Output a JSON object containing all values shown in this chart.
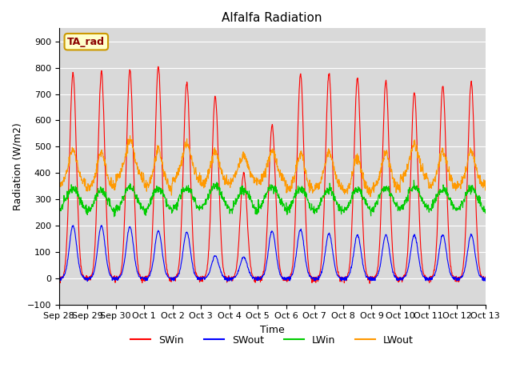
{
  "title": "Alfalfa Radiation",
  "xlabel": "Time",
  "ylabel": "Radiation (W/m2)",
  "ylim": [
    -100,
    950
  ],
  "yticks": [
    -100,
    0,
    100,
    200,
    300,
    400,
    500,
    600,
    700,
    800,
    900
  ],
  "x_tick_labels": [
    "Sep 28",
    "Sep 29",
    "Sep 30",
    "Oct 1",
    "Oct 2",
    "Oct 3",
    "Oct 4",
    "Oct 5",
    "Oct 6",
    "Oct 7",
    "Oct 8",
    "Oct 9",
    "Oct 10",
    "Oct 11",
    "Oct 12",
    "Oct 13"
  ],
  "colors": {
    "SWin": "#ff0000",
    "SWout": "#0000ff",
    "LWin": "#00cc00",
    "LWout": "#ff9900"
  },
  "bg_color": "#d9d9d9",
  "legend_label": "TA_rad",
  "legend_bg": "#ffffcc",
  "legend_border": "#cc9900",
  "n_days": 15,
  "points_per_day": 96,
  "SWin_peaks": [
    780,
    785,
    790,
    805,
    745,
    690,
    400,
    580,
    775,
    780,
    760,
    750,
    705,
    730,
    745
  ],
  "SWout_peaks": [
    200,
    200,
    195,
    180,
    175,
    85,
    80,
    180,
    185,
    170,
    165,
    165,
    165,
    165,
    165
  ],
  "LWin_base": 300,
  "LWout_base": 380
}
